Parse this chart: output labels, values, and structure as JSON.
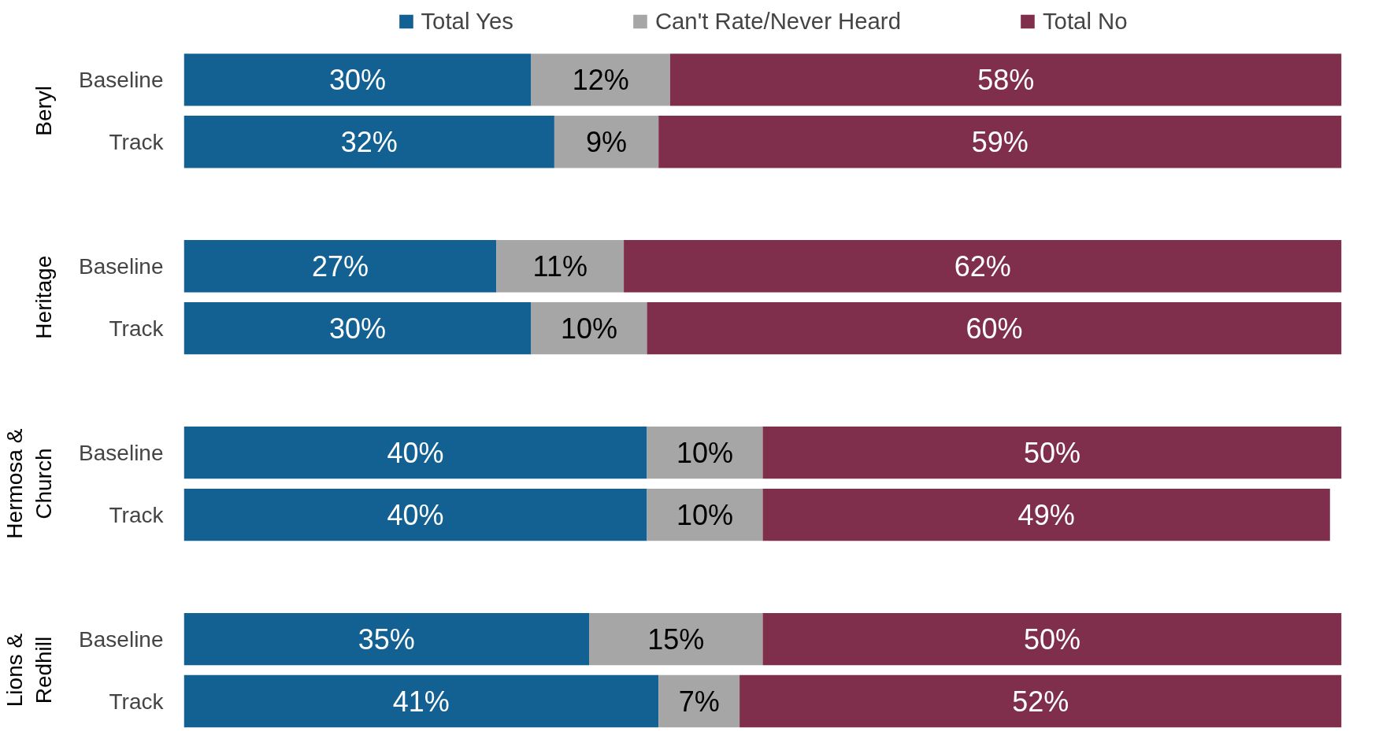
{
  "chart_data": {
    "type": "bar",
    "orientation": "horizontal",
    "stacked": true,
    "categories": [
      "Baseline",
      "Track",
      null,
      "Baseline",
      "Track",
      null,
      "Baseline",
      "Track",
      null,
      "Baseline",
      "Track"
    ],
    "series": [
      {
        "name": "Total Yes",
        "color": "#136092",
        "values": [
          30,
          32,
          null,
          27,
          30,
          null,
          40,
          40,
          null,
          35,
          41
        ],
        "value_labels": [
          "30%",
          "32%",
          null,
          "27%",
          "30%",
          null,
          "40%",
          "40%",
          null,
          "35%",
          "41%"
        ]
      },
      {
        "name": "Can't Rate/Never Heard",
        "color": "#a6a6a6",
        "values": [
          12,
          9,
          null,
          11,
          10,
          null,
          10,
          10,
          null,
          15,
          7
        ],
        "value_labels": [
          "12%",
          "9%",
          null,
          "11%",
          "10%",
          null,
          "10%",
          "10%",
          null,
          "15%",
          "7%"
        ]
      },
      {
        "name": "Total No",
        "color": "#7f2f4b",
        "values": [
          58,
          59,
          null,
          62,
          60,
          null,
          50,
          49,
          null,
          50,
          52
        ],
        "value_labels": [
          "58%",
          "59%",
          null,
          "62%",
          "60%",
          null,
          "50%",
          "49%",
          null,
          "50%",
          "52%"
        ]
      }
    ],
    "annotations": [
      "Beryl",
      "Heritage",
      "Hermosa & Church",
      "Lions & Redhill"
    ],
    "xlim": [
      0,
      100
    ],
    "tick_labels": "y",
    "grid": false,
    "legend": "top"
  }
}
